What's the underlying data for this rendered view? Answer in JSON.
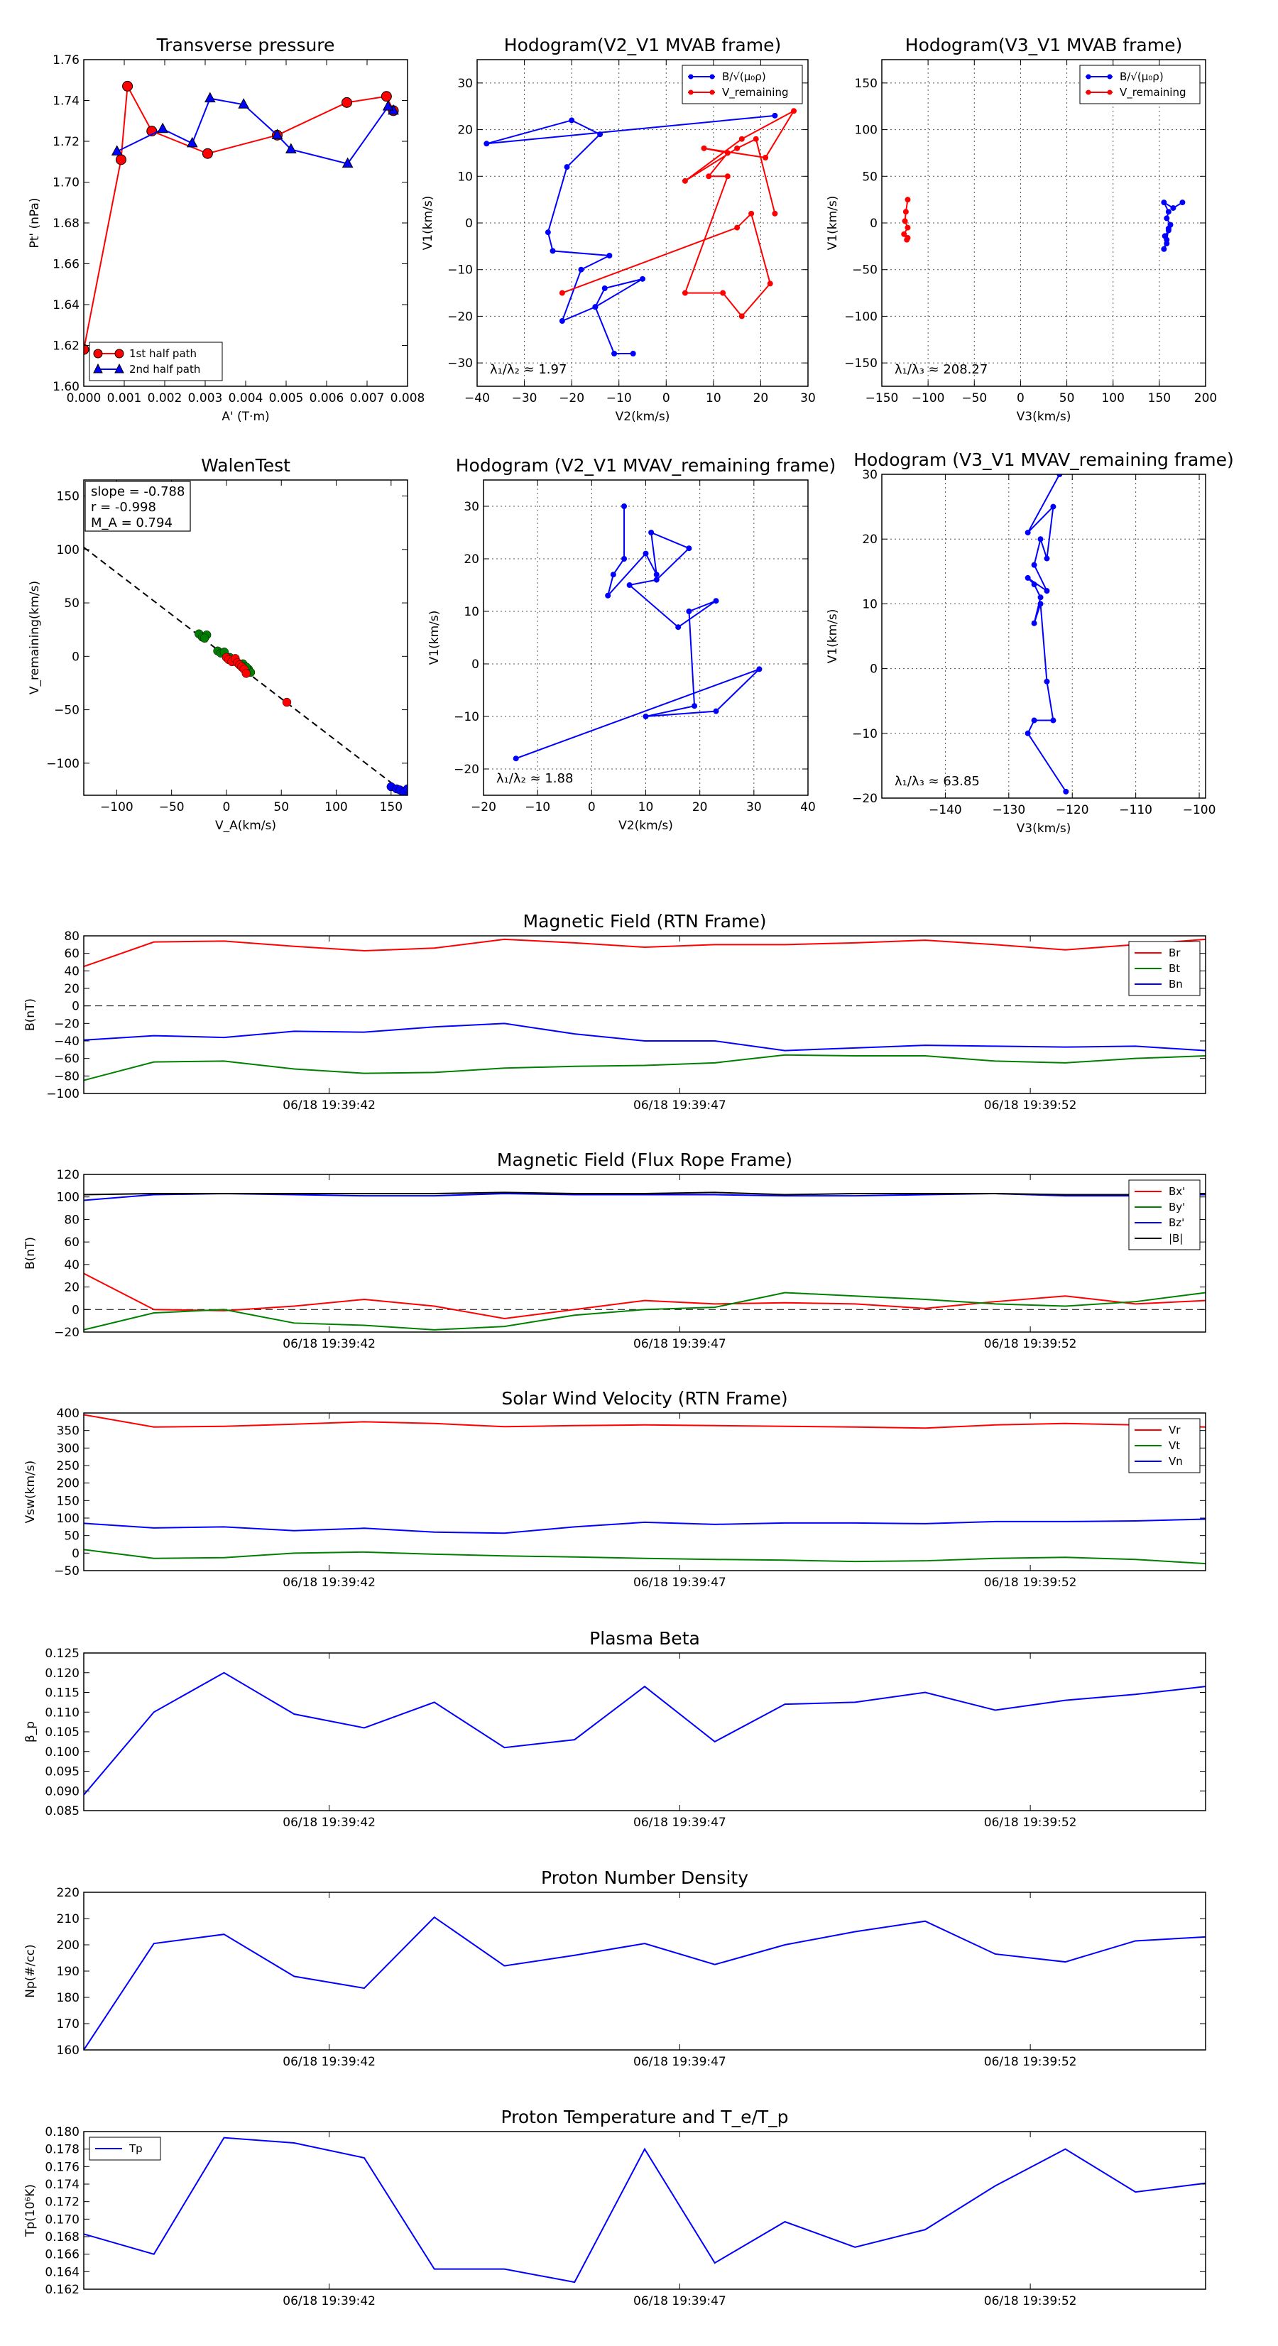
{
  "chart_data": [
    {
      "id": "pt",
      "type": "line",
      "title": "Transverse pressure",
      "xlabel": "A' (T·m)",
      "ylabel": "Pt' (nPa)",
      "xlim": [
        0.0,
        0.008
      ],
      "ylim": [
        1.6,
        1.76
      ],
      "xticks": [
        0.0,
        0.001,
        0.002,
        0.003,
        0.004,
        0.005,
        0.006,
        0.007,
        0.008
      ],
      "xtick_labels": [
        "0.000",
        "0.001",
        "0.002",
        "0.003",
        "0.004",
        "0.005",
        "0.006",
        "0.007",
        "0.008"
      ],
      "yticks": [
        1.6,
        1.62,
        1.64,
        1.66,
        1.68,
        1.7,
        1.72,
        1.74,
        1.76
      ],
      "ytick_labels": [
        "1.60",
        "1.62",
        "1.64",
        "1.66",
        "1.68",
        "1.70",
        "1.72",
        "1.74",
        "1.76"
      ],
      "grid": false,
      "legend_position": "lower-left",
      "series": [
        {
          "name": "1st half path",
          "color": "#ff0000",
          "marker": "circle",
          "x": [
            0.0,
            0.00092,
            0.00108,
            0.00168,
            0.00306,
            0.00478,
            0.0065,
            0.00748,
            0.00765
          ],
          "y": [
            1.618,
            1.711,
            1.747,
            1.725,
            1.714,
            1.723,
            1.739,
            1.742,
            1.735
          ]
        },
        {
          "name": "2nd half path",
          "color": "#0000ff",
          "marker": "triangle",
          "x": [
            0.00765,
            0.00752,
            0.00652,
            0.00512,
            0.00478,
            0.00395,
            0.00312,
            0.00268,
            0.00195,
            0.00082
          ],
          "y": [
            1.735,
            1.737,
            1.709,
            1.716,
            1.723,
            1.738,
            1.741,
            1.719,
            1.726,
            1.715
          ]
        }
      ]
    },
    {
      "id": "h1",
      "type": "line",
      "title": "Hodogram(V2_V1 MVAB frame)",
      "xlabel": "V2(km/s)",
      "ylabel": "V1(km/s)",
      "xlim": [
        -40,
        30
      ],
      "ylim": [
        -35,
        35
      ],
      "xticks": [
        -40,
        -30,
        -20,
        -10,
        0,
        10,
        20,
        30
      ],
      "yticks": [
        -30,
        -20,
        -10,
        0,
        10,
        20,
        30
      ],
      "grid": true,
      "legend_position": "top-right",
      "annotation": "λ₁/λ₂ ≈ 1.97",
      "series": [
        {
          "name": "B/√(μ₀ρ)",
          "color": "#0000ff",
          "marker": "dot",
          "x": [
            23,
            -38,
            -20,
            -14,
            -21,
            -25,
            -24,
            -12,
            -18,
            -22,
            -15,
            -5,
            -13,
            -15,
            -11,
            -7
          ],
          "y": [
            23,
            17,
            22,
            19,
            12,
            -2,
            -6,
            -7,
            -10,
            -21,
            -18,
            -12,
            -14,
            -18,
            -28,
            -28
          ]
        },
        {
          "name": "V_remaining",
          "color": "#ff0000",
          "marker": "dot",
          "x": [
            -22,
            15,
            18,
            22,
            16,
            12,
            4,
            13,
            9,
            13,
            8,
            21,
            27,
            16,
            4,
            15,
            19,
            23
          ],
          "y": [
            -15,
            -1,
            2,
            -13,
            -20,
            -15,
            -15,
            10,
            10,
            15,
            16,
            14,
            24,
            18,
            9,
            16,
            18,
            2
          ]
        }
      ]
    },
    {
      "id": "h2",
      "type": "line",
      "title": "Hodogram(V3_V1 MVAB frame)",
      "xlabel": "V3(km/s)",
      "ylabel": "V1(km/s)",
      "xlim": [
        -150,
        200
      ],
      "ylim": [
        -175,
        175
      ],
      "xticks": [
        -150,
        -100,
        -50,
        0,
        50,
        100,
        150,
        200
      ],
      "yticks": [
        -150,
        -100,
        -50,
        0,
        50,
        100,
        150
      ],
      "grid": true,
      "legend_position": "top-right",
      "annotation": "λ₁/λ₃ ≈ 208.27",
      "series": [
        {
          "name": "B/√(μ₀ρ)",
          "color": "#0000ff",
          "marker": "dot",
          "x": [
            175,
            165,
            155,
            160,
            158,
            162,
            160,
            156,
            158,
            155,
            158,
            160
          ],
          "y": [
            22,
            16,
            22,
            12,
            5,
            -2,
            -8,
            -14,
            -22,
            -28,
            -18,
            -6
          ]
        },
        {
          "name": "V_remaining",
          "color": "#ff0000",
          "marker": "dot",
          "x": [
            -122,
            -124,
            -125,
            -122,
            -126,
            -123,
            -122
          ],
          "y": [
            25,
            12,
            2,
            -5,
            -12,
            -18,
            -16
          ]
        }
      ]
    },
    {
      "id": "walen",
      "type": "scatter",
      "title": "WalenTest",
      "xlabel": "V_A(km/s)",
      "ylabel": "V_remaining(km/s)",
      "xlim": [
        -130,
        165
      ],
      "ylim": [
        -130,
        165
      ],
      "xticks": [
        -100,
        -50,
        0,
        50,
        100,
        150
      ],
      "yticks": [
        -100,
        -50,
        0,
        50,
        100,
        150
      ],
      "grid": false,
      "stats": [
        "slope = -0.788",
        "r = -0.998",
        "M_A = 0.794"
      ],
      "fit_line": {
        "x": [
          -130,
          165
        ],
        "y": [
          102,
          -130
        ]
      },
      "series": [
        {
          "name": "green",
          "color": "#008000",
          "x": [
            -25,
            -22,
            -18,
            -20,
            -8,
            -5,
            -2,
            3,
            8,
            15,
            20,
            22,
            12,
            18
          ],
          "y": [
            21,
            18,
            20,
            17,
            5,
            3,
            4,
            -1,
            -4,
            -7,
            -12,
            -15,
            -8,
            -10
          ]
        },
        {
          "name": "red",
          "color": "#ff0000",
          "x": [
            0,
            2,
            5,
            8,
            10,
            12,
            14,
            16,
            18,
            55
          ],
          "y": [
            -1,
            -3,
            -5,
            -2,
            -6,
            -8,
            -10,
            -12,
            -16,
            -43
          ]
        },
        {
          "name": "blue",
          "color": "#0000ff",
          "x": [
            150,
            155,
            160,
            158,
            162,
            165
          ],
          "y": [
            -122,
            -124,
            -126,
            -125,
            -127,
            -124
          ]
        }
      ]
    },
    {
      "id": "h3",
      "type": "line",
      "title": "Hodogram (V2_V1 MVAV_remaining frame)",
      "xlabel": "V2(km/s)",
      "ylabel": "V1(km/s)",
      "xlim": [
        -20,
        40
      ],
      "ylim": [
        -25,
        35
      ],
      "xticks": [
        -20,
        -10,
        0,
        10,
        20,
        30,
        40
      ],
      "yticks": [
        -20,
        -10,
        0,
        10,
        20,
        30
      ],
      "grid": true,
      "annotation": "λ₁/λ₂ ≈ 1.88",
      "series": [
        {
          "name": "V_remaining",
          "color": "#0000ff",
          "marker": "dot",
          "x": [
            6,
            6,
            4,
            3,
            10,
            12,
            11,
            18,
            12,
            7,
            16,
            23,
            18,
            19,
            10,
            23,
            31,
            -14
          ],
          "y": [
            30,
            20,
            17,
            13,
            21,
            17,
            25,
            22,
            16,
            15,
            7,
            12,
            10,
            -8,
            -10,
            -9,
            -1,
            -18
          ]
        }
      ]
    },
    {
      "id": "h4",
      "type": "line",
      "title": "Hodogram (V3_V1 MVAV_remaining frame)",
      "xlabel": "V3(km/s)",
      "ylabel": "V1(km/s)",
      "xlim": [
        -150,
        -99
      ],
      "ylim": [
        -20,
        30
      ],
      "xticks": [
        -140,
        -130,
        -120,
        -110,
        -100
      ],
      "yticks": [
        -20,
        -10,
        0,
        10,
        20,
        30
      ],
      "grid": true,
      "annotation": "λ₁/λ₃ ≈ 63.85",
      "series": [
        {
          "name": "V_remaining",
          "color": "#0000ff",
          "marker": "dot",
          "x": [
            -122,
            -127,
            -123,
            -124,
            -125,
            -126,
            -124,
            -127,
            -126,
            -125,
            -126,
            -125,
            -124,
            -123,
            -126,
            -127,
            -121
          ],
          "y": [
            30,
            21,
            25,
            17,
            20,
            16,
            12,
            14,
            13,
            11,
            7,
            10,
            -2,
            -8,
            -8,
            -10,
            -19
          ]
        }
      ]
    },
    {
      "id": "mrtn",
      "type": "line",
      "title": "Magnetic Field (RTN Frame)",
      "ylabel": "B(nT)",
      "ylim": [
        -100,
        80
      ],
      "yticks": [
        -100,
        -80,
        -60,
        -40,
        -20,
        0,
        20,
        40,
        60,
        80
      ],
      "xlim": [
        0,
        16
      ],
      "xticks": [
        3.5,
        8.5,
        13.5
      ],
      "xtick_labels": [
        "06/18 19:39:42",
        "06/18 19:39:47",
        "06/18 19:39:52"
      ],
      "zero_line": true,
      "legend_position": "top-right",
      "series": [
        {
          "name": "Br",
          "color": "#ff0000",
          "values": [
            45,
            73,
            74,
            68,
            63,
            66,
            76,
            72,
            67,
            70,
            70,
            72,
            75,
            70,
            64,
            70,
            76
          ]
        },
        {
          "name": "Bt",
          "color": "#008000",
          "values": [
            -85,
            -64,
            -63,
            -72,
            -77,
            -76,
            -71,
            -69,
            -68,
            -65,
            -56,
            -57,
            -57,
            -63,
            -65,
            -60,
            -57
          ]
        },
        {
          "name": "Bn",
          "color": "#0000ff",
          "values": [
            -39,
            -34,
            -36,
            -29,
            -30,
            -24,
            -20,
            -32,
            -40,
            -40,
            -51,
            -48,
            -45,
            -46,
            -47,
            -46,
            -51
          ]
        }
      ]
    },
    {
      "id": "mflux",
      "type": "line",
      "title": "Magnetic Field (Flux Rope Frame)",
      "ylabel": "B(nT)",
      "ylim": [
        -20,
        120
      ],
      "yticks": [
        -20,
        0,
        20,
        40,
        60,
        80,
        100,
        120
      ],
      "xlim": [
        0,
        16
      ],
      "xticks": [
        3.5,
        8.5,
        13.5
      ],
      "xtick_labels": [
        "06/18 19:39:42",
        "06/18 19:39:47",
        "06/18 19:39:52"
      ],
      "zero_line": true,
      "legend_position": "top-right",
      "series": [
        {
          "name": "Bx'",
          "color": "#ff0000",
          "values": [
            32,
            0,
            -1,
            3,
            9,
            3,
            -8,
            0,
            8,
            5,
            6,
            5,
            1,
            7,
            12,
            5,
            8
          ]
        },
        {
          "name": "By'",
          "color": "#008000",
          "values": [
            -18,
            -3,
            0,
            -12,
            -14,
            -18,
            -15,
            -5,
            0,
            2,
            15,
            12,
            9,
            5,
            3,
            7,
            15
          ]
        },
        {
          "name": "Bz'",
          "color": "#0000ff",
          "values": [
            97,
            102,
            103,
            102,
            101,
            101,
            103,
            102,
            102,
            102,
            101,
            101,
            102,
            103,
            101,
            101,
            102
          ]
        },
        {
          "name": "|B|",
          "color": "#000000",
          "values": [
            102,
            103,
            103,
            103,
            103,
            103,
            104,
            103,
            103,
            104,
            102,
            103,
            103,
            103,
            102,
            102,
            103
          ]
        }
      ]
    },
    {
      "id": "vsw",
      "type": "line",
      "title": "Solar Wind Velocity (RTN Frame)",
      "ylabel": "Vsw(km/s)",
      "ylim": [
        -50,
        400
      ],
      "yticks": [
        -50,
        0,
        50,
        100,
        150,
        200,
        250,
        300,
        350,
        400
      ],
      "xlim": [
        0,
        16
      ],
      "xticks": [
        3.5,
        8.5,
        13.5
      ],
      "xtick_labels": [
        "06/18 19:39:42",
        "06/18 19:39:47",
        "06/18 19:39:52"
      ],
      "legend_position": "top-right",
      "series": [
        {
          "name": "Vr",
          "color": "#ff0000",
          "values": [
            395,
            360,
            362,
            368,
            375,
            370,
            361,
            364,
            366,
            364,
            362,
            360,
            357,
            366,
            370,
            366,
            360
          ]
        },
        {
          "name": "Vt",
          "color": "#008000",
          "values": [
            10,
            -15,
            -13,
            0,
            3,
            -3,
            -8,
            -11,
            -15,
            -18,
            -20,
            -24,
            -22,
            -15,
            -12,
            -18,
            -30
          ]
        },
        {
          "name": "Vn",
          "color": "#0000ff",
          "values": [
            85,
            72,
            75,
            64,
            71,
            60,
            57,
            75,
            88,
            82,
            86,
            86,
            84,
            90,
            90,
            92,
            97
          ]
        }
      ]
    },
    {
      "id": "beta",
      "type": "line",
      "title": "Plasma Beta",
      "ylabel": "β_p",
      "ylim": [
        0.085,
        0.125
      ],
      "yticks": [
        0.085,
        0.09,
        0.095,
        0.1,
        0.105,
        0.11,
        0.115,
        0.12,
        0.125
      ],
      "ytick_labels": [
        "0.085",
        "0.090",
        "0.095",
        "0.100",
        "0.105",
        "0.110",
        "0.115",
        "0.120",
        "0.125"
      ],
      "xlim": [
        0,
        16
      ],
      "xticks": [
        3.5,
        8.5,
        13.5
      ],
      "xtick_labels": [
        "06/18 19:39:42",
        "06/18 19:39:47",
        "06/18 19:39:52"
      ],
      "series": [
        {
          "name": "beta",
          "color": "#0000ff",
          "values": [
            0.089,
            0.11,
            0.12,
            0.1095,
            0.106,
            0.1125,
            0.101,
            0.103,
            0.1165,
            0.1025,
            0.112,
            0.1125,
            0.115,
            0.1105,
            0.113,
            0.1145,
            0.1165
          ]
        }
      ]
    },
    {
      "id": "np",
      "type": "line",
      "title": "Proton Number Density",
      "ylabel": "Np(#/cc)",
      "ylim": [
        160,
        220
      ],
      "yticks": [
        160,
        170,
        180,
        190,
        200,
        210,
        220
      ],
      "xlim": [
        0,
        16
      ],
      "xticks": [
        3.5,
        8.5,
        13.5
      ],
      "xtick_labels": [
        "06/18 19:39:42",
        "06/18 19:39:47",
        "06/18 19:39:52"
      ],
      "series": [
        {
          "name": "Np",
          "color": "#0000ff",
          "values": [
            160,
            200.5,
            204,
            188,
            183.5,
            210.5,
            192,
            196,
            200.5,
            192.5,
            200,
            205,
            209,
            196.5,
            193.5,
            201.5,
            203
          ]
        }
      ]
    },
    {
      "id": "tp",
      "type": "line",
      "title": "Proton Temperature and T_e/T_p",
      "ylabel": "Tp(10⁶K)",
      "ylim": [
        0.162,
        0.18
      ],
      "yticks": [
        0.162,
        0.164,
        0.166,
        0.168,
        0.17,
        0.172,
        0.174,
        0.176,
        0.178,
        0.18
      ],
      "ytick_labels": [
        "0.162",
        "0.164",
        "0.166",
        "0.168",
        "0.170",
        "0.172",
        "0.174",
        "0.176",
        "0.178",
        "0.180"
      ],
      "xlim": [
        0,
        16
      ],
      "xticks": [
        3.5,
        8.5,
        13.5
      ],
      "xtick_labels": [
        "06/18 19:39:42",
        "06/18 19:39:47",
        "06/18 19:39:52"
      ],
      "legend_position": "top-left",
      "series": [
        {
          "name": "Tp",
          "color": "#0000ff",
          "values": [
            0.1683,
            0.166,
            0.1793,
            0.1787,
            0.177,
            0.1643,
            0.1643,
            0.1628,
            0.178,
            0.165,
            0.1697,
            0.1668,
            0.1688,
            0.1738,
            0.178,
            0.1731,
            0.1741
          ]
        }
      ]
    }
  ]
}
